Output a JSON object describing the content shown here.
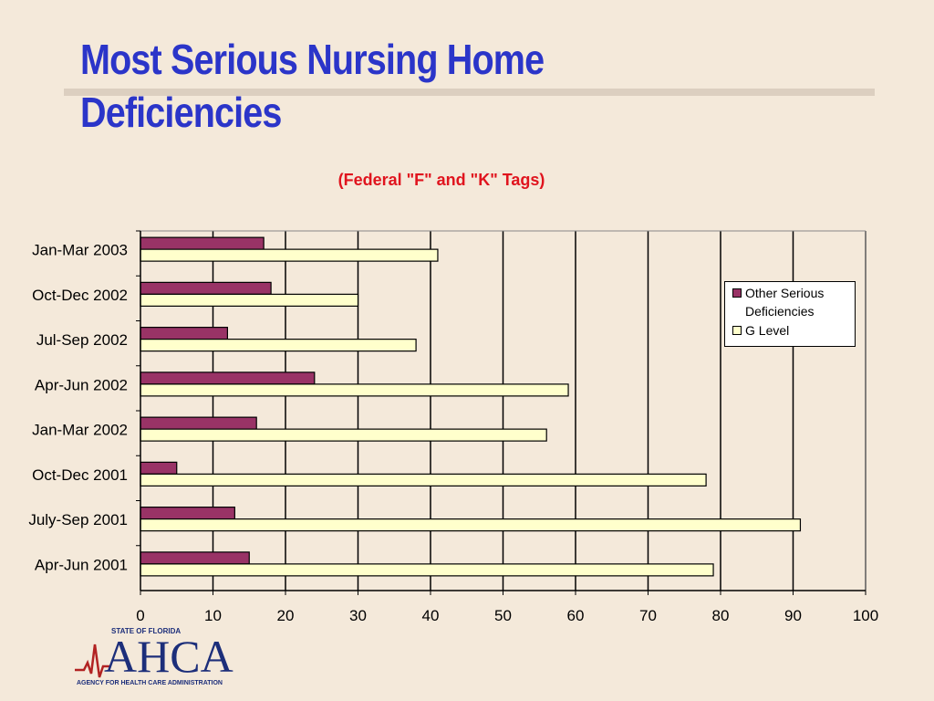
{
  "slide": {
    "title": "Most Serious Nursing Home Deficiencies"
  },
  "chart_data": {
    "type": "bar",
    "orientation": "horizontal",
    "subtitle": "(Federal \"F\" and \"K\" Tags)",
    "categories": [
      "Jan-Mar 2003",
      "Oct-Dec 2002",
      "Jul-Sep 2002",
      "Apr-Jun 2002",
      "Jan-Mar 2002",
      "Oct-Dec 2001",
      "July-Sep 2001",
      "Apr-Jun 2001"
    ],
    "series": [
      {
        "name": "Other Serious Deficiencies",
        "values": [
          17,
          18,
          12,
          24,
          16,
          5,
          13,
          15
        ],
        "color": "#993366"
      },
      {
        "name": "G Level",
        "values": [
          41,
          30,
          38,
          59,
          56,
          78,
          91,
          79
        ],
        "color": "#FFFFCC"
      }
    ],
    "xlim": [
      0,
      100
    ],
    "xticks": [
      "0",
      "10",
      "20",
      "30",
      "40",
      "50",
      "60",
      "70",
      "80",
      "90",
      "100"
    ],
    "grid": "vertical",
    "legend_position": "right"
  },
  "logo": {
    "state": "STATE OF FLORIDA",
    "name": "AHCA",
    "agency": "AGENCY FOR HEALTH CARE ADMINISTRATION"
  },
  "colors": {
    "background": "#F4E9DA",
    "title": "#2B35C9",
    "subtitle": "#E0141E",
    "logo": "#1C2E7A"
  }
}
